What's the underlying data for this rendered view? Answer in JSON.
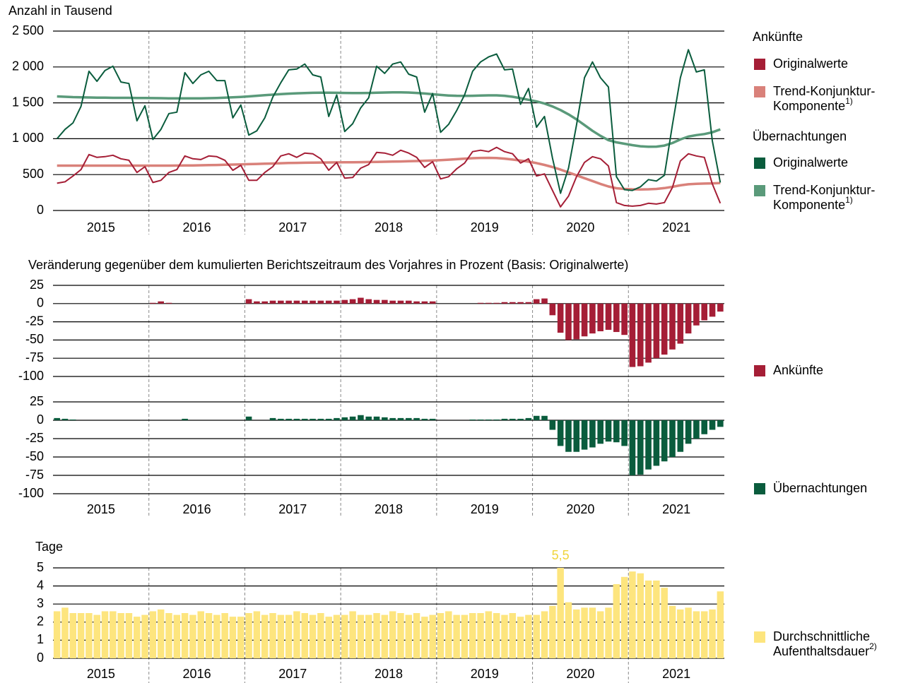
{
  "chart_data": [
    {
      "type": "line",
      "y_axis_label": "Anzahl in Tausend",
      "x_labels": [
        "2015",
        "2016",
        "2017",
        "2018",
        "2019",
        "2020",
        "2021"
      ],
      "ylim": [
        0,
        2500
      ],
      "yticks": [
        0,
        500,
        {
          "value": 1000,
          "label": "1 000"
        },
        {
          "value": 1500,
          "label": "1 500"
        },
        {
          "value": 2000,
          "label": "2 000"
        },
        {
          "value": 2500,
          "label": "2 500"
        }
      ],
      "grid": true,
      "legend_groups": [
        {
          "title": "Ankünfte",
          "series": [
            {
              "name_lines": [
                "Originalwerte"
              ],
              "color": "#a51e36",
              "values": [
                380,
                400,
                480,
                570,
                780,
                740,
                750,
                770,
                720,
                700,
                530,
                610,
                390,
                420,
                530,
                570,
                760,
                720,
                710,
                760,
                750,
                700,
                560,
                630,
                420,
                420,
                530,
                610,
                760,
                790,
                740,
                800,
                790,
                720,
                560,
                670,
                450,
                460,
                590,
                640,
                810,
                800,
                770,
                840,
                800,
                740,
                600,
                680,
                440,
                470,
                580,
                660,
                820,
                840,
                820,
                880,
                820,
                790,
                660,
                720,
                480,
                510,
                280,
                50,
                200,
                470,
                670,
                750,
                720,
                620,
                110,
                70,
                60,
                70,
                100,
                90,
                110,
                320,
                690,
                790,
                760,
                740,
                370,
                100
              ]
            },
            {
              "name_lines": [
                "Trend-Konjunktur-",
                "Komponente"
              ],
              "note": "1)",
              "color": "#d9817a",
              "values": [
                625,
                625,
                625,
                625,
                625,
                625,
                625,
                625,
                625,
                625,
                625,
                625,
                625,
                625,
                625,
                626,
                627,
                628,
                630,
                632,
                634,
                637,
                640,
                643,
                646,
                649,
                652,
                655,
                658,
                661,
                663,
                665,
                667,
                668,
                669,
                670,
                671,
                672,
                673,
                675,
                677,
                679,
                681,
                683,
                686,
                689,
                693,
                697,
                702,
                708,
                715,
                722,
                728,
                732,
                733,
                730,
                722,
                710,
                696,
                680,
                660,
                635,
                605,
                570,
                530,
                490,
                450,
                410,
                370,
                335,
                310,
                300,
                295,
                293,
                295,
                300,
                312,
                330,
                350,
                365,
                372,
                375,
                378,
                383
              ]
            }
          ]
        },
        {
          "title": "Übernachtungen",
          "series": [
            {
              "name_lines": [
                "Originalwerte"
              ],
              "color": "#0a5c3d",
              "values": [
                1000,
                1130,
                1220,
                1450,
                1940,
                1800,
                1950,
                2010,
                1790,
                1770,
                1250,
                1460,
                990,
                1130,
                1350,
                1370,
                1920,
                1770,
                1890,
                1940,
                1810,
                1810,
                1290,
                1470,
                1050,
                1110,
                1290,
                1580,
                1780,
                1960,
                1970,
                2040,
                1890,
                1860,
                1310,
                1610,
                1100,
                1210,
                1430,
                1570,
                2010,
                1910,
                2040,
                2070,
                1900,
                1860,
                1370,
                1630,
                1090,
                1200,
                1390,
                1610,
                1940,
                2070,
                2140,
                2180,
                1960,
                1970,
                1480,
                1700,
                1160,
                1310,
                730,
                240,
                590,
                1190,
                1850,
                2070,
                1850,
                1720,
                470,
                290,
                280,
                330,
                430,
                410,
                490,
                1190,
                1850,
                2240,
                1930,
                1960,
                970,
                390
              ]
            },
            {
              "name_lines": [
                "Trend-Konjunktur-",
                "Komponente"
              ],
              "note": "1)",
              "color": "#5a9a7a",
              "values": [
                1590,
                1585,
                1580,
                1578,
                1575,
                1573,
                1572,
                1570,
                1570,
                1570,
                1568,
                1567,
                1566,
                1565,
                1563,
                1562,
                1562,
                1562,
                1563,
                1565,
                1568,
                1572,
                1577,
                1583,
                1590,
                1598,
                1606,
                1614,
                1622,
                1628,
                1633,
                1637,
                1640,
                1641,
                1641,
                1640,
                1638,
                1636,
                1636,
                1638,
                1641,
                1644,
                1646,
                1646,
                1644,
                1638,
                1630,
                1620,
                1610,
                1602,
                1598,
                1597,
                1598,
                1601,
                1604,
                1604,
                1598,
                1585,
                1565,
                1542,
                1520,
                1490,
                1450,
                1400,
                1340,
                1270,
                1190,
                1110,
                1040,
                980,
                950,
                930,
                910,
                895,
                888,
                890,
                905,
                940,
                990,
                1030,
                1050,
                1065,
                1090,
                1130
              ]
            }
          ]
        }
      ]
    },
    {
      "type": "bar",
      "title": "Veränderung gegenüber dem kumulierten Berichtszeitraum des Vorjahres in Prozent (Basis: Originalwerte)",
      "x_labels": [
        "2015",
        "2016",
        "2017",
        "2018",
        "2019",
        "2020",
        "2021"
      ],
      "ylim": [
        -100,
        25
      ],
      "yticks": [
        25,
        0,
        -25,
        -50,
        -75,
        -100
      ],
      "grid": true,
      "series": [
        {
          "name": "Ankünfte",
          "color": "#a51e36",
          "values": [
            null,
            null,
            null,
            null,
            null,
            null,
            null,
            null,
            null,
            null,
            null,
            null,
            1,
            3,
            1,
            0,
            0,
            0,
            0,
            0,
            0,
            0,
            0,
            0,
            6,
            3,
            3,
            4,
            4,
            4,
            4,
            4,
            4,
            4,
            4,
            4,
            5,
            6,
            8,
            6,
            5,
            5,
            4,
            4,
            4,
            3,
            3,
            3,
            0,
            0,
            0,
            0,
            0,
            1,
            1,
            1,
            2,
            2,
            2,
            2,
            6,
            7,
            -16,
            -40,
            -50,
            -49,
            -45,
            -41,
            -38,
            -36,
            -39,
            -43,
            -87,
            -86,
            -81,
            -75,
            -70,
            -63,
            -55,
            -41,
            -30,
            -23,
            -18,
            -11
          ]
        },
        {
          "name": "Übernachtungen",
          "color": "#0a5c3d",
          "values": [
            3,
            2,
            1,
            null,
            null,
            null,
            null,
            null,
            null,
            null,
            null,
            null,
            0,
            0,
            0,
            0,
            2,
            0,
            0,
            0,
            0,
            0,
            0,
            0,
            5,
            0,
            0,
            3,
            2,
            2,
            2,
            2,
            2,
            2,
            2,
            3,
            4,
            5,
            7,
            5,
            5,
            4,
            3,
            3,
            3,
            3,
            2,
            2,
            0,
            0,
            0,
            0,
            1,
            1,
            1,
            1,
            2,
            2,
            2,
            3,
            6,
            6,
            -13,
            -35,
            -43,
            -43,
            -40,
            -37,
            -32,
            -29,
            -30,
            -35,
            -75,
            -74,
            -67,
            -62,
            -56,
            -50,
            -43,
            -32,
            -25,
            -19,
            -13,
            -9
          ]
        }
      ]
    },
    {
      "type": "bar",
      "y_axis_label": "Tage",
      "x_labels": [
        "2015",
        "2016",
        "2017",
        "2018",
        "2019",
        "2020",
        "2021"
      ],
      "ylim": [
        0,
        5
      ],
      "yticks": [
        0,
        1,
        2,
        3,
        4,
        5
      ],
      "grid": true,
      "series": [
        {
          "name_lines": [
            "Durchschnittliche",
            "Aufenthaltsdauer"
          ],
          "note": "2)",
          "color": "#fde57e",
          "values": [
            2.6,
            2.8,
            2.5,
            2.5,
            2.5,
            2.4,
            2.6,
            2.6,
            2.5,
            2.5,
            2.3,
            2.4,
            2.6,
            2.7,
            2.5,
            2.4,
            2.5,
            2.4,
            2.6,
            2.5,
            2.4,
            2.5,
            2.3,
            2.3,
            2.5,
            2.6,
            2.4,
            2.5,
            2.4,
            2.4,
            2.6,
            2.5,
            2.4,
            2.5,
            2.3,
            2.4,
            2.4,
            2.6,
            2.4,
            2.4,
            2.5,
            2.4,
            2.6,
            2.5,
            2.4,
            2.5,
            2.3,
            2.4,
            2.5,
            2.6,
            2.4,
            2.4,
            2.5,
            2.5,
            2.6,
            2.5,
            2.4,
            2.5,
            2.3,
            2.4,
            2.4,
            2.6,
            2.9,
            5.5,
            3.1,
            2.7,
            2.8,
            2.8,
            2.6,
            2.8,
            4.1,
            4.5,
            4.8,
            4.7,
            4.3,
            4.3,
            3.9,
            2.9,
            2.7,
            2.8,
            2.6,
            2.6,
            2.7,
            3.7
          ],
          "value_labels": [
            null,
            null,
            null,
            null,
            null,
            null,
            null,
            null,
            null,
            null,
            null,
            null,
            null,
            null,
            null,
            null,
            null,
            null,
            null,
            null,
            null,
            null,
            null,
            null,
            null,
            null,
            null,
            null,
            null,
            null,
            null,
            null,
            null,
            null,
            null,
            null,
            null,
            null,
            null,
            null,
            null,
            null,
            null,
            null,
            null,
            null,
            null,
            null,
            null,
            null,
            null,
            null,
            null,
            null,
            null,
            null,
            null,
            null,
            null,
            null,
            null,
            null,
            null,
            "5,5",
            null,
            null,
            null,
            null,
            null,
            null,
            null,
            null,
            null,
            null,
            null,
            null,
            null,
            null,
            null,
            null,
            null,
            null,
            null,
            null
          ]
        }
      ]
    }
  ]
}
